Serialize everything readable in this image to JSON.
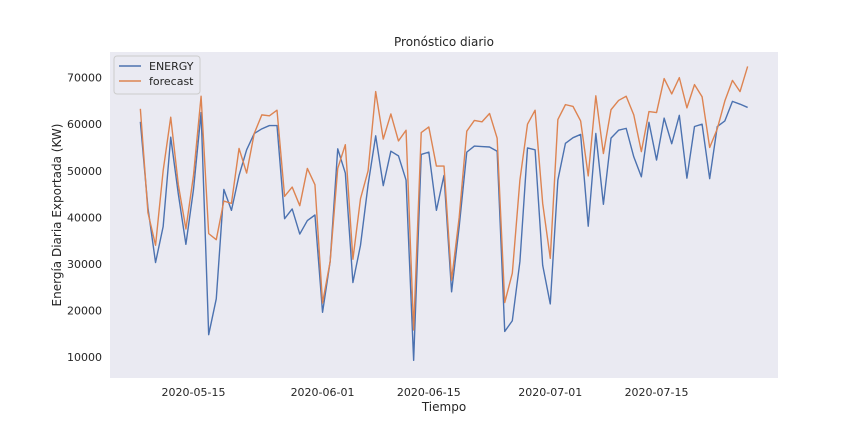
{
  "chart_data": {
    "type": "line",
    "title": "Pronóstico diario",
    "xlabel": "Tiempo",
    "ylabel": "Energía Diaria Exportada (KW)",
    "start_date": "2020-05-08",
    "x_ticks": [
      {
        "label": "2020-05-15",
        "day": 7
      },
      {
        "label": "2020-06-01",
        "day": 24
      },
      {
        "label": "2020-06-15",
        "day": 38
      },
      {
        "label": "2020-07-01",
        "day": 54
      },
      {
        "label": "2020-07-15",
        "day": 68
      }
    ],
    "y_ticks": [
      10000,
      20000,
      30000,
      40000,
      50000,
      60000,
      70000
    ],
    "xlim": [
      -4,
      84
    ],
    "ylim": [
      5500,
      75500
    ],
    "grid": false,
    "background": "#eaeaf2",
    "legend_position": "top-left",
    "series": [
      {
        "name": "ENERGY",
        "color": "#4c72b0",
        "values": [
          60500,
          42000,
          30300,
          38000,
          57200,
          45000,
          34200,
          46000,
          62500,
          14800,
          22500,
          46000,
          41500,
          49000,
          54500,
          58000,
          59000,
          59700,
          59700,
          39700,
          41800,
          36400,
          39300,
          40500,
          19600,
          30500,
          54700,
          49500,
          26000,
          34000,
          47000,
          57500,
          46800,
          54200,
          53200,
          48000,
          9300,
          53500,
          54000,
          41500,
          49000,
          24000,
          38000,
          54000,
          55300,
          55200,
          55100,
          54200,
          15500,
          17800,
          30500,
          54900,
          54500,
          29700,
          21400,
          48000,
          55900,
          57100,
          57800,
          38100,
          58000,
          42800,
          57000,
          58700,
          59100,
          53000,
          48700,
          60400,
          52300,
          61300,
          55800,
          61900,
          48400,
          59500,
          60000,
          48300,
          59500,
          60700,
          64900,
          64300,
          63600
        ]
      },
      {
        "name": "forecast",
        "color": "#dd8452",
        "values": [
          63300,
          41000,
          34000,
          50000,
          61500,
          47000,
          37500,
          49000,
          66000,
          36500,
          35200,
          43500,
          43000,
          54800,
          49500,
          58000,
          62000,
          61800,
          63000,
          44500,
          46500,
          42500,
          50500,
          47000,
          21600,
          30500,
          50500,
          55600,
          31000,
          44000,
          50000,
          67000,
          56800,
          62200,
          56400,
          58700,
          15800,
          58200,
          59400,
          51000,
          51000,
          26500,
          40000,
          58500,
          60800,
          60500,
          62300,
          57000,
          21700,
          28000,
          48000,
          60000,
          63000,
          43000,
          31200,
          61000,
          64200,
          63800,
          60700,
          48900,
          66100,
          53700,
          63100,
          65100,
          66000,
          62000,
          54100,
          62700,
          62500,
          69800,
          66500,
          70000,
          63500,
          68500,
          65900,
          55000,
          59000,
          65000,
          69400,
          67000,
          72400
        ]
      }
    ]
  }
}
